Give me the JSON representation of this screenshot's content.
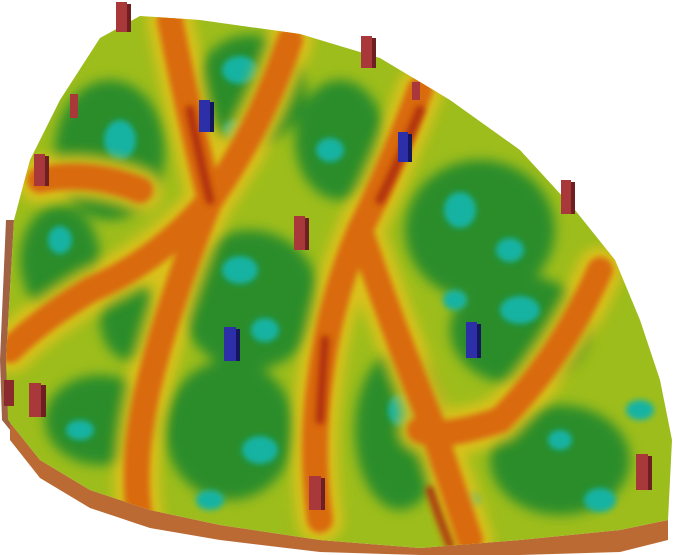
{
  "scene": {
    "kind": "3d-reservoir-property-grid-with-wells",
    "colors": {
      "background": "#ffffff",
      "low": "#0fb3a6",
      "low_mid": "#1f8a2a",
      "mid": "#7fb51a",
      "mid_high": "#e6c21a",
      "high": "#d96a10",
      "max": "#a8280f",
      "side_face": "#b45a1d"
    },
    "wells": {
      "count_injector": 4,
      "count_producer": 11,
      "injector_color": "#2c2fa8",
      "producer_color": "#a8383a",
      "icon": "well-marker-icon"
    }
  }
}
